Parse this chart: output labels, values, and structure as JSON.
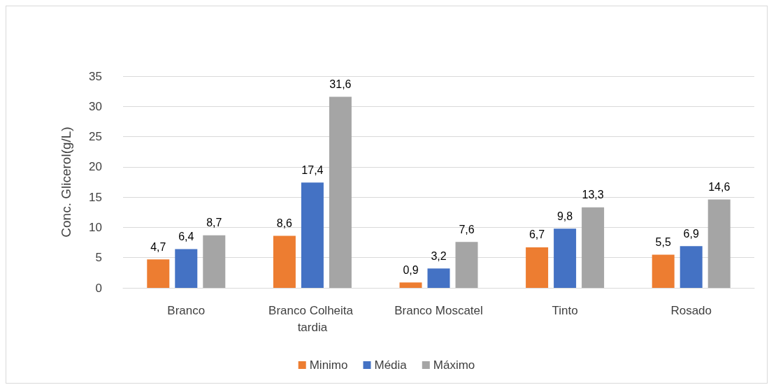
{
  "chart_data": {
    "type": "bar",
    "ylabel": "Conc. Glicerol(g/L)",
    "categories": [
      "Branco",
      "Branco Colheita tardia",
      "Branco Moscatel",
      "Tinto",
      "Rosado"
    ],
    "series": [
      {
        "name": "Minimo",
        "color": "#ed7d31",
        "values": [
          4.7,
          8.6,
          0.9,
          6.7,
          5.5
        ],
        "value_labels": [
          "4,7",
          "8,6",
          "0,9",
          "6,7",
          "5,5"
        ]
      },
      {
        "name": "Média",
        "color": "#4472c4",
        "values": [
          6.4,
          17.4,
          3.2,
          9.8,
          6.9
        ],
        "value_labels": [
          "6,4",
          "17,4",
          "3,2",
          "9,8",
          "6,9"
        ]
      },
      {
        "name": "Máximo",
        "color": "#a5a5a5",
        "values": [
          8.7,
          31.6,
          7.6,
          13.3,
          14.6
        ],
        "value_labels": [
          "8,7",
          "31,6",
          "7,6",
          "13,3",
          "14,6"
        ]
      }
    ],
    "ylim": [
      0,
      35
    ],
    "yticks": [
      0,
      5,
      10,
      15,
      20,
      25,
      30,
      35
    ],
    "grid": "y",
    "legend": "bottom"
  }
}
